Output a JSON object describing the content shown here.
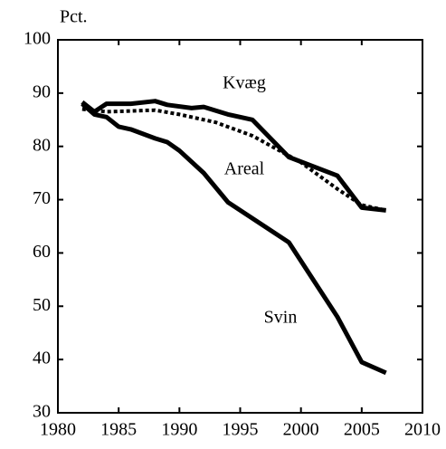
{
  "chart_data": {
    "type": "line",
    "y_label": "Pct.",
    "x": [
      1982,
      1983,
      1984,
      1985,
      1986,
      1988,
      1989,
      1990,
      1991,
      1992,
      1993,
      1994,
      1996,
      1999,
      2000,
      2001,
      2003,
      2005,
      2007
    ],
    "series": [
      {
        "name": "Kvæg",
        "color": "#000000",
        "dash": false,
        "values": [
          88.3,
          86.5,
          88,
          null,
          88,
          88.5,
          87.8,
          null,
          87.2,
          87.4,
          null,
          86,
          85,
          78,
          null,
          null,
          74.5,
          68.5,
          68
        ]
      },
      {
        "name": "Areal",
        "color": "#000000",
        "dash": true,
        "values": [
          87,
          null,
          86.5,
          null,
          null,
          86.8,
          null,
          86,
          null,
          null,
          84.5,
          null,
          82,
          null,
          77,
          null,
          72,
          69,
          68
        ]
      },
      {
        "name": "Svin",
        "color": "#000000",
        "dash": false,
        "values": [
          88,
          86,
          85.5,
          83.7,
          83.2,
          81.5,
          80.8,
          79.2,
          null,
          75,
          null,
          69.5,
          null,
          62,
          null,
          55,
          48,
          39.5,
          37.5
        ]
      }
    ],
    "xlim": [
      1980,
      2010
    ],
    "xticks": [
      1980,
      1985,
      1990,
      1995,
      2000,
      2005,
      2010
    ],
    "ylim": [
      30,
      100
    ],
    "yticks": [
      30,
      40,
      50,
      60,
      70,
      80,
      90,
      100
    ],
    "grid": false
  }
}
